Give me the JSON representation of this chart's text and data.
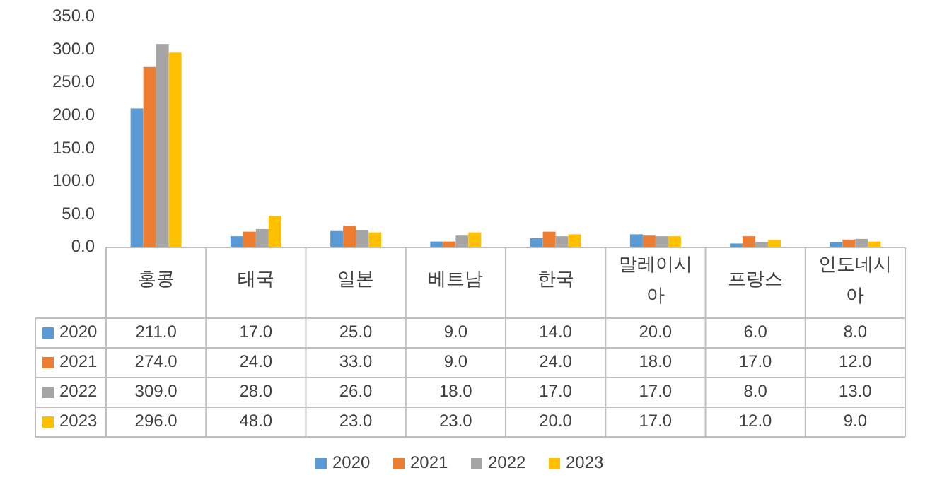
{
  "chart_data": {
    "type": "bar",
    "categories": [
      "홍콩",
      "태국",
      "일본",
      "베트남",
      "한국",
      "말레이시아",
      "프랑스",
      "인도네시아"
    ],
    "series": [
      {
        "name": "2020",
        "color": "#5b9bd5",
        "values": [
          211.0,
          17.0,
          25.0,
          9.0,
          14.0,
          20.0,
          6.0,
          8.0
        ],
        "value_labels": [
          "211.0",
          "17.0",
          "25.0",
          "9.0",
          "14.0",
          "20.0",
          "6.0",
          "8.0"
        ]
      },
      {
        "name": "2021",
        "color": "#ed7d31",
        "values": [
          274.0,
          24.0,
          33.0,
          9.0,
          24.0,
          18.0,
          17.0,
          12.0
        ],
        "value_labels": [
          "274.0",
          "24.0",
          "33.0",
          "9.0",
          "24.0",
          "18.0",
          "17.0",
          "12.0"
        ]
      },
      {
        "name": "2022",
        "color": "#a5a5a5",
        "values": [
          309.0,
          28.0,
          26.0,
          18.0,
          17.0,
          17.0,
          8.0,
          13.0
        ],
        "value_labels": [
          "309.0",
          "28.0",
          "26.0",
          "18.0",
          "17.0",
          "17.0",
          "8.0",
          "13.0"
        ]
      },
      {
        "name": "2023",
        "color": "#ffc000",
        "values": [
          296.0,
          48.0,
          23.0,
          23.0,
          20.0,
          17.0,
          12.0,
          9.0
        ],
        "value_labels": [
          "296.0",
          "48.0",
          "23.0",
          "23.0",
          "20.0",
          "17.0",
          "12.0",
          "9.0"
        ]
      }
    ],
    "ylim": [
      0,
      350
    ],
    "yticks": [
      {
        "value": 0,
        "label": "0.0"
      },
      {
        "value": 50,
        "label": "50.0"
      },
      {
        "value": 100,
        "label": "100.0"
      },
      {
        "value": 150,
        "label": "150.0"
      },
      {
        "value": 200,
        "label": "200.0"
      },
      {
        "value": 250,
        "label": "250.0"
      },
      {
        "value": 300,
        "label": "300.0"
      },
      {
        "value": 350,
        "label": "350.0"
      }
    ],
    "legend": "bottom",
    "grid": false
  }
}
